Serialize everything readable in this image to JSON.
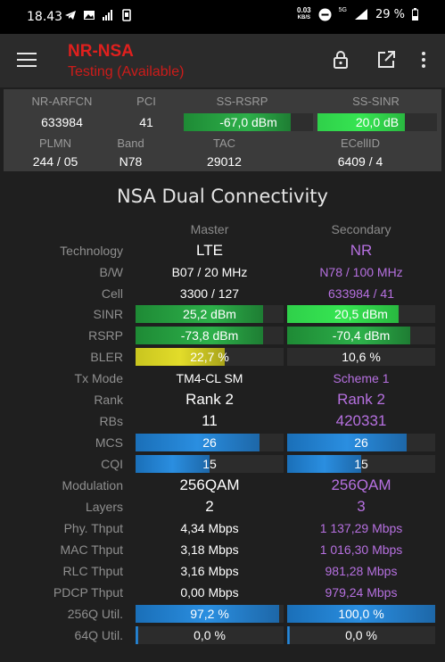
{
  "status_bar": {
    "time": "18.43",
    "rate_value": "0.03",
    "rate_unit": "KB/S",
    "network": "5G",
    "battery": "29 %"
  },
  "app_bar": {
    "title": "NR-NSA",
    "subtitle": "Testing (Available)",
    "icons": [
      "menu-icon",
      "lock-icon",
      "open-external-icon",
      "more-vert-icon"
    ]
  },
  "summary": {
    "labels": {
      "arfcn": "NR-ARFCN",
      "pci": "PCI",
      "rsrp": "SS-RSRP",
      "sinr": "SS-SINR",
      "plmn": "PLMN",
      "band": "Band",
      "tac": "TAC",
      "ecellid": "ECellID"
    },
    "values": {
      "arfcn": "633984",
      "pci": "41",
      "rsrp": "-67,0 dBm",
      "sinr": "20,0 dB",
      "plmn": "244 / 05",
      "band": "N78",
      "tac": "29012",
      "ecellid": "6409 / 4"
    },
    "bars": {
      "rsrp_fill": 0.83,
      "sinr_fill": 0.73
    }
  },
  "section": {
    "title": "NSA Dual Connectivity",
    "master_label": "Master",
    "secondary_label": "Secondary"
  },
  "rows": {
    "technology": {
      "label": "Technology",
      "master": "LTE",
      "secondary": "NR"
    },
    "bw": {
      "label": "B/W",
      "master": "B07 / 20 MHz",
      "secondary": "N78 / 100 MHz"
    },
    "cell": {
      "label": "Cell",
      "master": "3300 / 127",
      "secondary": "633984 / 41"
    },
    "sinr": {
      "label": "SINR",
      "master": "25,2 dBm",
      "secondary": "20,5 dBm",
      "master_fill": 0.86,
      "secondary_fill": 0.75
    },
    "rsrp": {
      "label": "RSRP",
      "master": "-73,8 dBm",
      "secondary": "-70,4 dBm",
      "master_fill": 0.86,
      "secondary_fill": 0.83
    },
    "bler": {
      "label": "BLER",
      "master": "22,7 %",
      "secondary": "10,6 %",
      "master_fill": 0.6,
      "secondary_fill": 0
    },
    "txmode": {
      "label": "Tx Mode",
      "master": "TM4-CL SM",
      "secondary": "Scheme 1"
    },
    "rank": {
      "label": "Rank",
      "master": "Rank 2",
      "secondary": "Rank 2"
    },
    "rbs": {
      "label": "RBs",
      "master": "11",
      "secondary": "420331"
    },
    "mcs": {
      "label": "MCS",
      "master": "26",
      "secondary": "26",
      "master_fill": 0.84,
      "secondary_fill": 0.81
    },
    "cqi": {
      "label": "CQI",
      "master": "15",
      "secondary": "15",
      "master_fill": 0.5,
      "secondary_fill": 0.5
    },
    "modulation": {
      "label": "Modulation",
      "master": "256QAM",
      "secondary": "256QAM"
    },
    "layers": {
      "label": "Layers",
      "master": "2",
      "secondary": "3"
    },
    "phy": {
      "label": "Phy. Thput",
      "master": "4,34 Mbps",
      "secondary": "1 137,29 Mbps"
    },
    "mac": {
      "label": "MAC Thput",
      "master": "3,18 Mbps",
      "secondary": "1 016,30 Mbps"
    },
    "rlc": {
      "label": "RLC Thput",
      "master": "3,16 Mbps",
      "secondary": "981,28 Mbps"
    },
    "pdcp": {
      "label": "PDCP Thput",
      "master": "0,00 Mbps",
      "secondary": "979,24 Mbps"
    },
    "util256": {
      "label": "256Q Util.",
      "master": "97,2 %",
      "secondary": "100,0 %",
      "master_fill": 0.972,
      "secondary_fill": 1.0
    },
    "util64": {
      "label": "64Q Util.",
      "master": "0,0 %",
      "secondary": "0,0 %",
      "master_fill": 0.02,
      "secondary_fill": 0.02
    }
  },
  "colors": {
    "title_red": "#e0201e",
    "secondary_purple": "#b670e0",
    "bar_green": "#2db04a",
    "bar_blue": "#2a8ee0",
    "bar_yellow": "#e2dc2a"
  }
}
